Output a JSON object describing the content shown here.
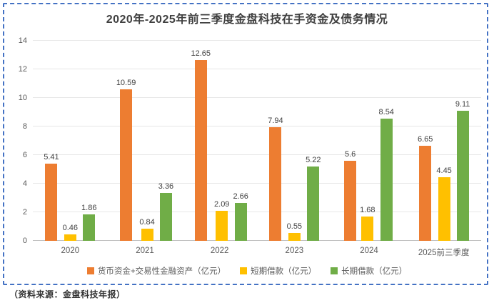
{
  "chart_data": {
    "type": "bar",
    "title": "2020年-2025年前三季度金盘科技在手资金及债务情况",
    "categories": [
      "2020",
      "2021",
      "2022",
      "2023",
      "2024",
      "2025前三季度"
    ],
    "series": [
      {
        "name": "货币资金+交易性金融资产（亿元）",
        "color": "#ED7D31",
        "values": [
          5.41,
          10.59,
          12.65,
          7.94,
          5.6,
          6.65
        ]
      },
      {
        "name": "短期借款（亿元）",
        "color": "#FFC000",
        "values": [
          0.46,
          0.84,
          2.09,
          0.55,
          1.68,
          4.45
        ]
      },
      {
        "name": "长期借款（亿元）",
        "color": "#70AD47",
        "values": [
          1.86,
          3.36,
          2.66,
          5.22,
          8.54,
          9.11
        ]
      }
    ],
    "xlabel": "",
    "ylabel": "",
    "ylim": [
      0,
      14
    ],
    "ytick_step": 2,
    "grid": "horizontal",
    "legend_position": "bottom"
  },
  "source_note": "（资料来源：金盘科技年报）",
  "colors": {
    "selection_border": "#4472C4",
    "title_text": "#404040",
    "axis_text": "#595959",
    "value_label_text": "#404040",
    "gridline": "#E7E7E7",
    "axis_line": "#BFBFBF",
    "background": "#FFFFFF"
  }
}
